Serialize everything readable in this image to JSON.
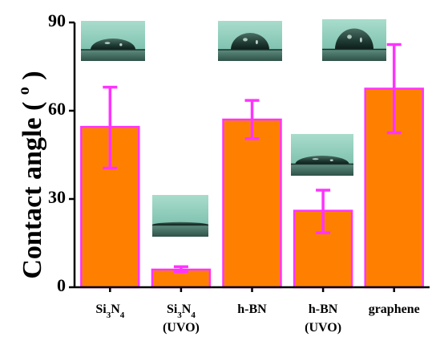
{
  "chart_data": {
    "type": "bar",
    "categories": [
      "Si3N4",
      "Si3N4 (UVO)",
      "h-BN",
      "h-BN (UVO)",
      "graphene"
    ],
    "category_labels": [
      {
        "line1_parts": [
          {
            "t": "Si",
            "sub": false
          },
          {
            "t": "3",
            "sub": true
          },
          {
            "t": "N",
            "sub": false
          },
          {
            "t": "4",
            "sub": true
          }
        ],
        "line2": ""
      },
      {
        "line1_parts": [
          {
            "t": "Si",
            "sub": false
          },
          {
            "t": "3",
            "sub": true
          },
          {
            "t": "N",
            "sub": false
          },
          {
            "t": "4",
            "sub": true
          }
        ],
        "line2": "(UVO)"
      },
      {
        "line1_parts": [
          {
            "t": "h-BN",
            "sub": false
          }
        ],
        "line2": ""
      },
      {
        "line1_parts": [
          {
            "t": "h-BN",
            "sub": false
          }
        ],
        "line2": "(UVO)"
      },
      {
        "line1_parts": [
          {
            "t": "graphene",
            "sub": false
          }
        ],
        "line2": ""
      }
    ],
    "values": [
      54.5,
      6,
      57,
      26,
      67.5
    ],
    "error_low": [
      40.5,
      5.2,
      50.5,
      18.5,
      52.5
    ],
    "error_high": [
      68,
      7,
      63.5,
      33,
      82.5
    ],
    "ylabel": "Contact angle ( ",
    "ylabel_sup": "o",
    "ylabel_end": " )",
    "ylim": [
      0,
      90
    ],
    "yticks": [
      0,
      30,
      60,
      90
    ],
    "colors": {
      "bar": "#ff8000",
      "bar_edge": "#ff33ff",
      "error": "#ff33ff",
      "axis": "#000000"
    },
    "droplet_insets": [
      {
        "category": "Si3N4",
        "shape": "flat-cap"
      },
      {
        "category": "Si3N4 (UVO)",
        "shape": "spread-film"
      },
      {
        "category": "h-BN",
        "shape": "dome"
      },
      {
        "category": "h-BN (UVO)",
        "shape": "low-cap"
      },
      {
        "category": "graphene",
        "shape": "tall-dome"
      }
    ]
  }
}
